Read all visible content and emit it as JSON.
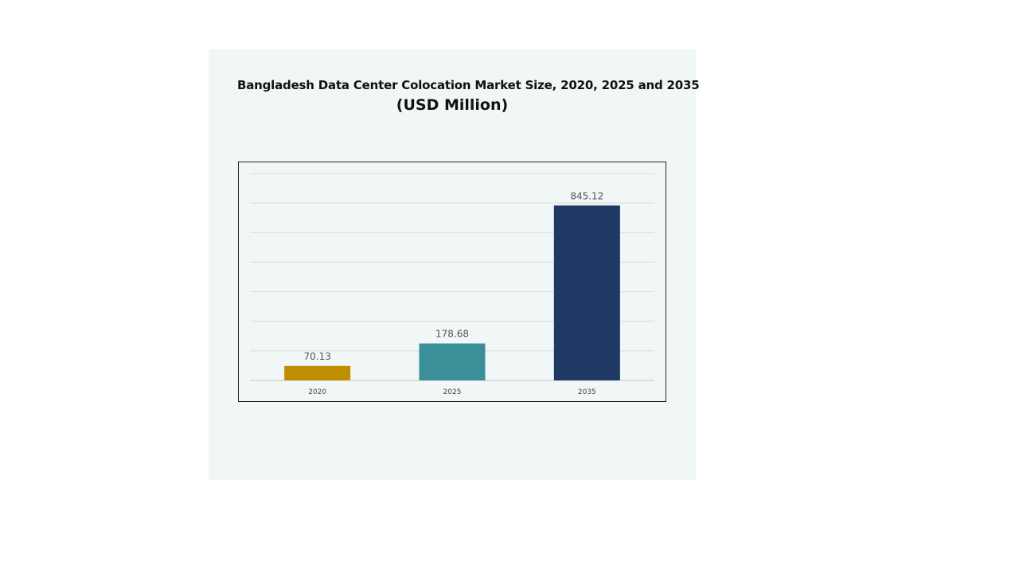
{
  "chart_data": {
    "type": "bar",
    "title": "Bangladesh Data Center Colocation Market Size, 2020, 2025 and 2035",
    "subtitle": "(USD Million)",
    "categories": [
      "2020",
      "2025",
      "2035"
    ],
    "values": [
      70.13,
      178.68,
      845.12
    ],
    "value_labels": [
      "70.13",
      "178.68",
      "845.12"
    ],
    "colors": [
      "#bf8f00",
      "#3a8f99",
      "#203864"
    ],
    "xlabel": "",
    "ylabel": "",
    "ylim": [
      0,
      1000
    ],
    "grid": true,
    "legend": "none"
  }
}
